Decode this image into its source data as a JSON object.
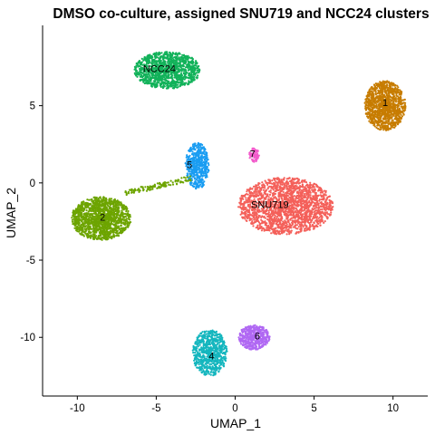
{
  "chart_data": {
    "type": "scatter",
    "title": "DMSO co-culture, assigned SNU719 and NCC24 clusters",
    "xlabel": "UMAP_1",
    "ylabel": "UMAP_2",
    "xlim": [
      -12.2,
      12.2
    ],
    "ylim": [
      -13.8,
      10.2
    ],
    "x_ticks": [
      -10,
      -5,
      0,
      5,
      10
    ],
    "y_ticks": [
      -10,
      -5,
      0,
      5
    ],
    "grid": false,
    "legend": "none",
    "clusters": [
      {
        "label": "1",
        "color": "#C77C00",
        "center": [
          9.5,
          5.0
        ],
        "label_pos": [
          9.5,
          5.2
        ],
        "radii": [
          1.3,
          1.6
        ],
        "count": 1100
      },
      {
        "label": "NCC24",
        "color": "#12B25A",
        "center": [
          -4.3,
          7.3
        ],
        "label_pos": [
          -4.8,
          7.4
        ],
        "radii": [
          2.1,
          1.2
        ],
        "count": 1200
      },
      {
        "label": "SNU719",
        "color": "#F4605A",
        "center": [
          3.2,
          -1.5
        ],
        "label_pos": [
          2.2,
          -1.4
        ],
        "radii": [
          3.0,
          1.85
        ],
        "count": 2000
      },
      {
        "label": "2",
        "color": "#6DA400",
        "center": [
          -8.5,
          -2.3
        ],
        "label_pos": [
          -8.4,
          -2.2
        ],
        "radii": [
          1.9,
          1.4
        ],
        "count": 1400
      },
      {
        "label": "5",
        "color": "#1A9DF2",
        "center": [
          -2.4,
          1.1
        ],
        "label_pos": [
          -2.9,
          1.2
        ],
        "radii": [
          0.75,
          1.5
        ],
        "count": 500
      },
      {
        "label": "7",
        "color": "#F25BCB",
        "center": [
          1.2,
          1.8
        ],
        "label_pos": [
          1.1,
          1.9
        ],
        "radii": [
          0.32,
          0.45
        ],
        "count": 80
      },
      {
        "label": "4",
        "color": "#14B6BE",
        "center": [
          -1.6,
          -11.0
        ],
        "label_pos": [
          -1.5,
          -11.2
        ],
        "radii": [
          1.1,
          1.5
        ],
        "count": 700
      },
      {
        "label": "6",
        "color": "#B068F3",
        "center": [
          1.2,
          -10.0
        ],
        "label_pos": [
          1.4,
          -9.9
        ],
        "radii": [
          1.0,
          0.8
        ],
        "count": 450
      }
    ],
    "bridge": {
      "color": "#6DA400",
      "from": [
        -7.0,
        -0.7
      ],
      "to": [
        -2.8,
        0.3
      ],
      "count": 120
    }
  }
}
